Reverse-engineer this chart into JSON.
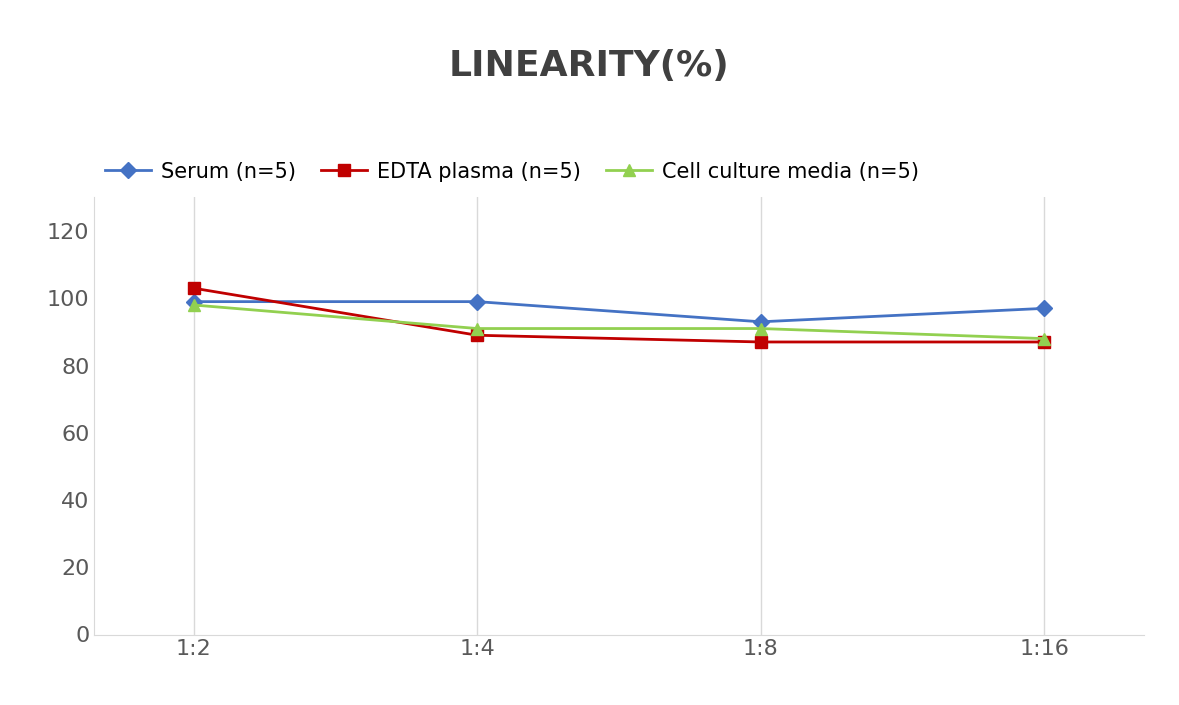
{
  "title": "LINEARITY(%)",
  "x_labels": [
    "1:2",
    "1:4",
    "1:8",
    "1:16"
  ],
  "x_positions": [
    0,
    1,
    2,
    3
  ],
  "series": [
    {
      "label": "Serum (n=5)",
      "values": [
        99,
        99,
        93,
        97
      ],
      "color": "#4472C4",
      "marker": "D",
      "marker_size": 8,
      "linewidth": 2.0
    },
    {
      "label": "EDTA plasma (n=5)",
      "values": [
        103,
        89,
        87,
        87
      ],
      "color": "#C00000",
      "marker": "s",
      "marker_size": 8,
      "linewidth": 2.0
    },
    {
      "label": "Cell culture media (n=5)",
      "values": [
        98,
        91,
        91,
        88
      ],
      "color": "#92D050",
      "marker": "^",
      "marker_size": 8,
      "linewidth": 2.0
    }
  ],
  "ylim": [
    0,
    130
  ],
  "yticks": [
    0,
    20,
    40,
    60,
    80,
    100,
    120
  ],
  "background_color": "#ffffff",
  "grid_color": "#d9d9d9",
  "title_fontsize": 26,
  "tick_fontsize": 16,
  "legend_fontsize": 15
}
